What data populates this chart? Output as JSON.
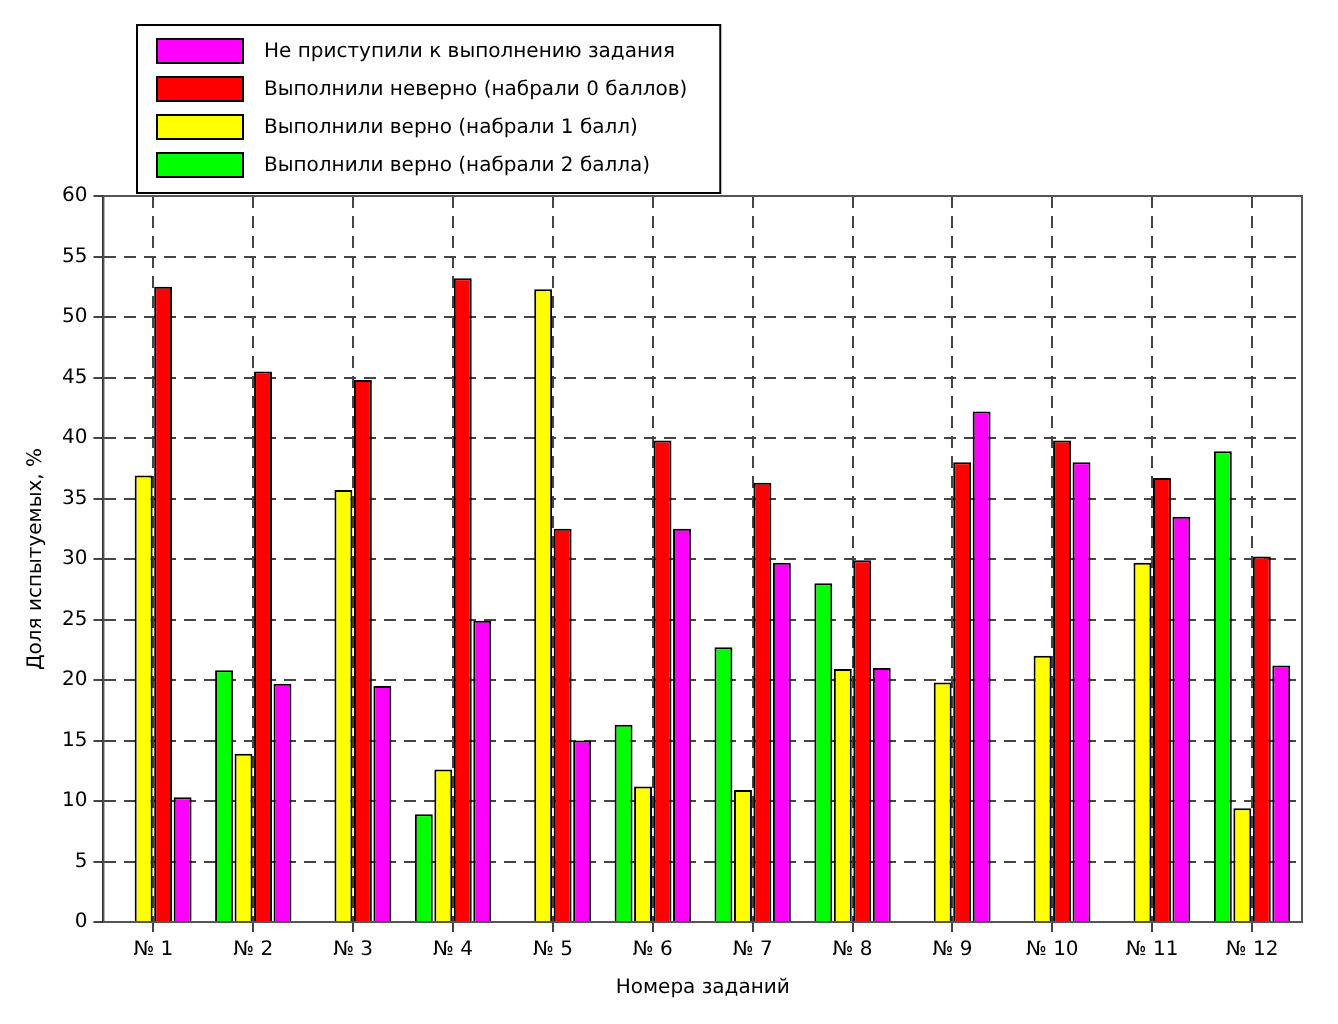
{
  "chart_data": {
    "type": "bar",
    "xlabel": "Номера заданий",
    "ylabel": "Доля испытуемых, %",
    "categories": [
      "№ 1",
      "№ 2",
      "№ 3",
      "№ 4",
      "№ 5",
      "№ 6",
      "№ 7",
      "№ 8",
      "№ 9",
      "№ 10",
      "№ 11",
      "№ 12"
    ],
    "series": [
      {
        "name": "Выполнили верно (набрали 2 балла)",
        "color": "#00ff00",
        "values": [
          null,
          20.8,
          null,
          8.9,
          null,
          16.3,
          22.7,
          28.0,
          null,
          null,
          null,
          38.9
        ]
      },
      {
        "name": "Выполнили верно (набрали 1 балл)",
        "color": "#ffff00",
        "values": [
          36.9,
          13.9,
          35.7,
          12.6,
          52.3,
          11.2,
          10.9,
          20.9,
          19.8,
          22.0,
          29.7,
          9.4
        ]
      },
      {
        "name": "Выполнили неверно (набрали 0 баллов)",
        "color": "#ff0000",
        "values": [
          52.5,
          45.5,
          44.8,
          53.2,
          32.5,
          39.8,
          36.3,
          29.9,
          38.0,
          39.8,
          36.7,
          30.2
        ]
      },
      {
        "name": "Не приступили к выполнению задания",
        "color": "#ff00ff",
        "values": [
          10.3,
          19.7,
          19.5,
          24.9,
          15.0,
          32.5,
          29.7,
          21.0,
          42.2,
          38.0,
          33.5,
          21.2
        ]
      }
    ],
    "ylim": [
      0,
      60
    ],
    "yticks": [
      0,
      5,
      10,
      15,
      20,
      25,
      30,
      35,
      40,
      45,
      50,
      55,
      60
    ],
    "grid": true,
    "legend": "top left"
  }
}
